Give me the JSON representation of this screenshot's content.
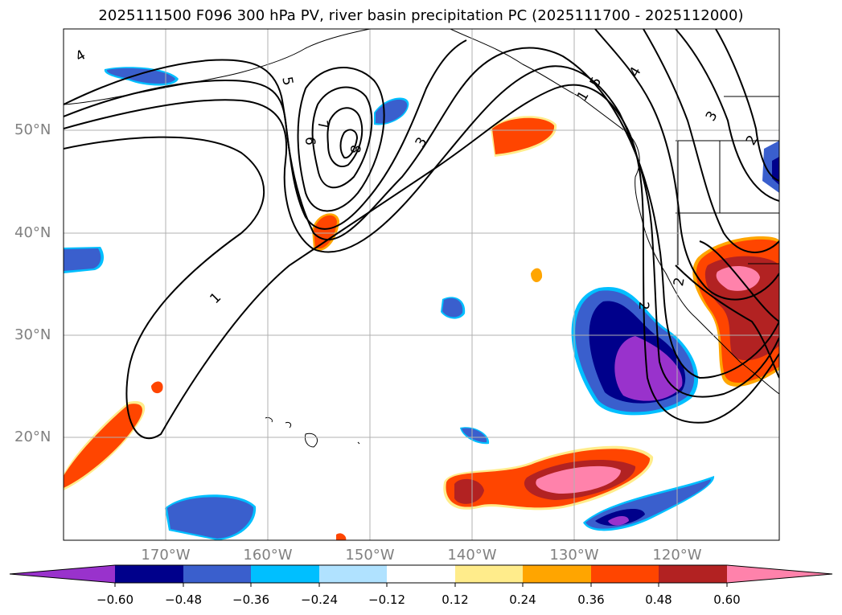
{
  "title": "2025111500 F096 300 hPa PV, river basin precipitation PC (2025111700 - 2025112000)",
  "map": {
    "lat_labels": [
      "50°N",
      "40°N",
      "30°N",
      "20°N"
    ],
    "lon_labels": [
      "170°W",
      "160°W",
      "150°W",
      "140°W",
      "130°W",
      "120°W"
    ],
    "contour_labels": [
      "4",
      "5",
      "6",
      "7",
      "8",
      "3",
      "1",
      "5",
      "4",
      "3",
      "2",
      "2",
      "2",
      "1"
    ],
    "contour_color": "#000000",
    "grid_color": "#b0b0b0"
  },
  "colorbar": {
    "ticks": [
      "−0.60",
      "−0.48",
      "−0.36",
      "−0.24",
      "−0.12",
      "0.12",
      "0.24",
      "0.36",
      "0.48",
      "0.60"
    ],
    "colors": [
      "#9932cc",
      "#00008b",
      "#3a5fcd",
      "#00bfff",
      "#b0e2ff",
      "#ffffff",
      "#ffec8b",
      "#ffa500",
      "#ff4500",
      "#b22222",
      "#ff82ab"
    ],
    "extend": "both"
  }
}
